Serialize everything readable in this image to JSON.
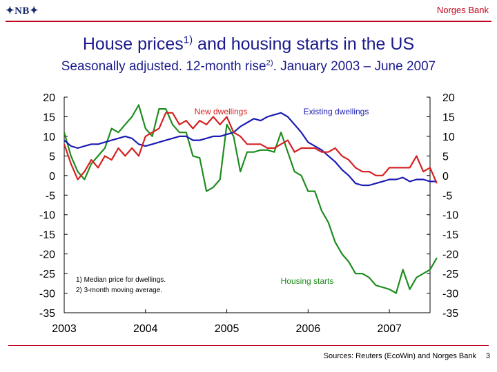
{
  "header": {
    "logo_text": "✦NB✦",
    "brand": "Norges Bank"
  },
  "title": {
    "main": "House prices",
    "main_sup": "1)",
    "main_rest": " and housing starts in the US",
    "sub": "Seasonally adjusted. 12-month rise",
    "sub_sup": "2)",
    "sub_rest": ". January 2003 – June 2007"
  },
  "footer": {
    "source": "Sources: Reuters (EcoWin) and Norges Bank",
    "page": "3"
  },
  "colors": {
    "new_dwellings": "#d62020",
    "existing_dwellings": "#1a1ab4",
    "housing_starts": "#1e8c1e",
    "axis": "#000000"
  },
  "chart_data": {
    "type": "line",
    "title": "House prices and housing starts in the US",
    "ylim": [
      -35,
      20
    ],
    "yticks": [
      "20",
      "15",
      "10",
      "5",
      "0",
      "-5",
      "-10",
      "-15",
      "-20",
      "-25",
      "-30",
      "-35"
    ],
    "xticks": [
      "2003",
      "2004",
      "2005",
      "2006",
      "2007"
    ],
    "xlim": [
      2003.0,
      2007.5
    ],
    "x_start": 2003.0,
    "x_step_months": 1,
    "series": [
      {
        "name": "New dwellings",
        "label": "New dwellings",
        "values": [
          8,
          3,
          -1,
          1,
          4,
          2,
          5,
          4,
          7,
          5,
          7,
          5,
          10,
          11,
          12,
          16,
          16,
          13,
          14,
          12,
          14,
          13,
          15,
          13,
          15,
          11,
          10,
          8,
          8,
          8,
          7,
          7,
          8,
          9,
          6,
          7,
          7,
          7,
          6,
          6,
          7,
          5,
          4,
          2,
          1,
          1,
          0,
          0,
          2,
          2,
          2,
          2,
          5,
          1,
          2,
          -2
        ]
      },
      {
        "name": "Existing dwellings",
        "label": "Existing dwellings",
        "values": [
          9,
          7.5,
          7,
          7.5,
          8,
          8,
          8.5,
          9,
          9.5,
          10,
          9.5,
          8,
          7.5,
          8,
          8.5,
          9,
          9.5,
          10,
          10,
          9,
          9,
          9.5,
          10,
          10,
          10.5,
          11,
          12.5,
          13.5,
          14.5,
          14,
          15,
          15.5,
          16,
          15,
          13,
          11,
          8.5,
          7.5,
          6.5,
          5,
          3.5,
          1.5,
          0,
          -2,
          -2.5,
          -2.5,
          -2,
          -1.5,
          -1,
          -1,
          -0.5,
          -1.5,
          -1,
          -1,
          -1.5,
          -1.5
        ]
      },
      {
        "name": "Housing starts",
        "label": "Housing starts",
        "values": [
          11,
          5,
          1,
          -1,
          3,
          5,
          7,
          12,
          11,
          13,
          15,
          18,
          12,
          10,
          17,
          17,
          13,
          11,
          11,
          5,
          4.5,
          -4,
          -3,
          -1,
          13,
          10,
          1,
          6,
          6,
          6.5,
          6.5,
          6,
          11,
          6,
          1,
          0,
          -4,
          -4,
          -9,
          -12,
          -17,
          -20,
          -22,
          -25,
          -25,
          -26,
          -28,
          -28.5,
          -29,
          -30,
          -24,
          -29,
          -26,
          -25,
          -24,
          -21
        ]
      }
    ],
    "notes": [
      "1) Median price for dwellings.",
      "2) 3-month moving average."
    ]
  }
}
